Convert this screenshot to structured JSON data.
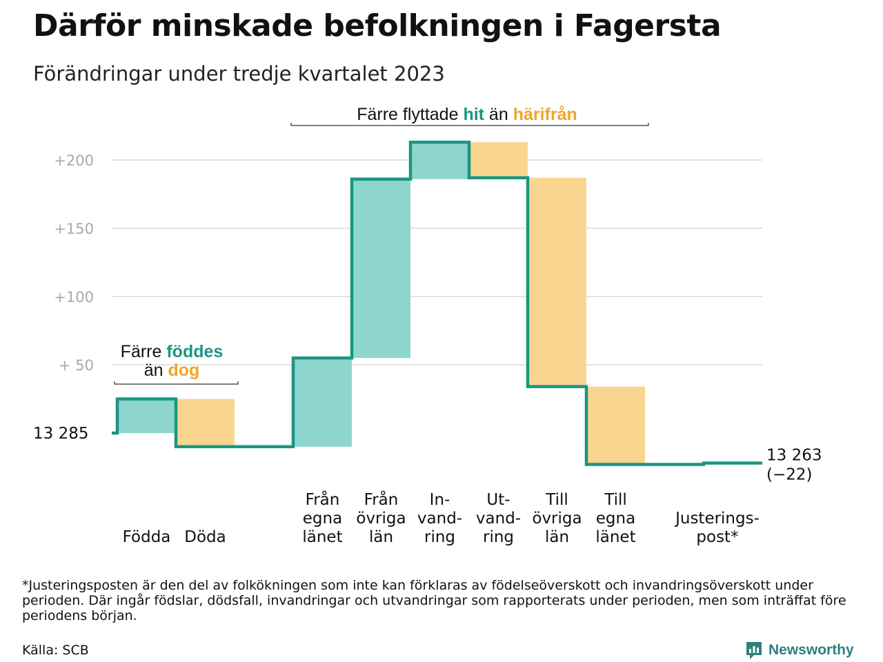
{
  "title": "Därför minskade befolkningen i Fagersta",
  "subtitle": "Förändringar under tredje kvartalet 2023",
  "footnote": "*Justeringsposten är den del av folkökningen som inte kan förklaras av födelseöverskott och invandringsöverskott under perioden. Där ingår födslar, dödsfall, invandringar och utvandringar som rapporterats under perioden, men som inträffat före periodens början.",
  "source": "Källa: SCB",
  "brand": "Newsworthy",
  "colors": {
    "increase": "#8dd5cd",
    "decrease": "#fad58f",
    "line": "#1a9682",
    "accent_teal": "#1a9682",
    "accent_orange": "#f2a52a",
    "grid": "#e2e2e2",
    "tick_text": "#a8a8a8"
  },
  "chart_data": {
    "type": "waterfall",
    "start_value": 13285,
    "start_label": "13  285",
    "end_value": 13263,
    "end_label": "13 263",
    "end_change_label": "(−22)",
    "y_axis": {
      "ticks": [
        50,
        100,
        150,
        200
      ],
      "tick_labels": [
        "+  50",
        "+100",
        "+150",
        "+200"
      ],
      "ylim": [
        -24,
        214
      ]
    },
    "steps": [
      {
        "category": "Födda",
        "label_lines": [
          "Födda"
        ],
        "value": 25,
        "kind": "increase"
      },
      {
        "category": "Döda",
        "label_lines": [
          "Döda"
        ],
        "value": -35,
        "kind": "decrease"
      },
      {
        "category": "Från egna länet",
        "label_lines": [
          "Från",
          "egna",
          "länet"
        ],
        "value": 65,
        "kind": "increase"
      },
      {
        "category": "Från övriga län",
        "label_lines": [
          "Från",
          "övriga",
          "län"
        ],
        "value": 131,
        "kind": "increase"
      },
      {
        "category": "Invandring",
        "label_lines": [
          "In-",
          "vand-",
          "ring"
        ],
        "value": 27,
        "kind": "increase"
      },
      {
        "category": "Utvandring",
        "label_lines": [
          "Ut-",
          "vand-",
          "ring"
        ],
        "value": -26,
        "kind": "decrease"
      },
      {
        "category": "Till övriga län",
        "label_lines": [
          "Till",
          "övriga",
          "län"
        ],
        "value": -153,
        "kind": "decrease"
      },
      {
        "category": "Till egna länet",
        "label_lines": [
          "Till",
          "egna",
          "länet"
        ],
        "value": -57,
        "kind": "decrease"
      },
      {
        "category": "Justeringspost*",
        "label_lines": [
          "Justerings-",
          "post*"
        ],
        "value": 1,
        "kind": "adjustment"
      }
    ],
    "annotations": [
      {
        "id": "births",
        "lines": [
          [
            {
              "text": "Färre ",
              "color": "dark"
            },
            {
              "text": "föddes",
              "color": "teal",
              "bold": true
            }
          ],
          [
            {
              "text": "än ",
              "color": "dark"
            },
            {
              "text": "dog",
              "color": "orange",
              "bold": true
            }
          ]
        ]
      },
      {
        "id": "migration",
        "lines": [
          [
            {
              "text": "Färre flyttade ",
              "color": "dark"
            },
            {
              "text": "hit",
              "color": "teal",
              "bold": true
            },
            {
              "text": " än ",
              "color": "dark"
            },
            {
              "text": "härifrån",
              "color": "orange",
              "bold": true
            }
          ]
        ]
      }
    ]
  }
}
